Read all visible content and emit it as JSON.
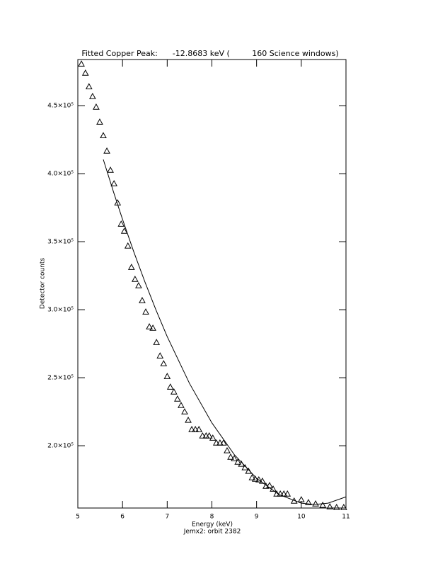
{
  "chart_data": {
    "type": "scatter",
    "title": "Fitted Copper Peak:      -12.8683 keV (         160 Science windows)",
    "x_label": "Energy (keV)",
    "subtitle": "Jemx2: orbit 2382",
    "y_label": "Detector counts",
    "xlim": [
      5,
      11
    ],
    "ylim": [
      154200,
      483900
    ],
    "xticks": [
      5,
      6,
      7,
      8,
      9,
      10,
      11
    ],
    "yticks": [
      {
        "value": 200000,
        "label": "2.0×10⁵"
      },
      {
        "value": 250000,
        "label": "2.5×10⁵"
      },
      {
        "value": 300000,
        "label": "3.0×10⁵"
      },
      {
        "value": 350000,
        "label": "3.5×10⁵"
      },
      {
        "value": 400000,
        "label": "4.0×10⁵"
      },
      {
        "value": 450000,
        "label": "4.5×10⁵"
      }
    ],
    "series": [
      {
        "type": "scatter",
        "marker": "triangle",
        "color": "#000000",
        "x": [
          5.08,
          5.17,
          5.25,
          5.33,
          5.41,
          5.49,
          5.57,
          5.65,
          5.73,
          5.81,
          5.89,
          5.97,
          6.04,
          6.12,
          6.2,
          6.28,
          6.36,
          6.44,
          6.52,
          6.6,
          6.68,
          6.76,
          6.84,
          6.92,
          7.0,
          7.07,
          7.15,
          7.23,
          7.31,
          7.39,
          7.47,
          7.55,
          7.63,
          7.71,
          7.79,
          7.87,
          7.94,
          8.02,
          8.1,
          8.18,
          8.26,
          8.34,
          8.42,
          8.5,
          8.58,
          8.66,
          8.74,
          8.82,
          8.9,
          8.97,
          9.05,
          9.13,
          9.21,
          9.29,
          9.37,
          9.45,
          9.53,
          9.61,
          9.69,
          9.84,
          10.0,
          10.16,
          10.32,
          10.48,
          10.64,
          10.79,
          10.95
        ],
        "values": [
          480700,
          474000,
          464000,
          456800,
          449000,
          438000,
          428000,
          416700,
          402600,
          392700,
          378600,
          363000,
          357800,
          346900,
          331200,
          322400,
          317700,
          306800,
          298400,
          287500,
          286500,
          276000,
          266100,
          260400,
          251000,
          243200,
          239600,
          234400,
          229700,
          225000,
          218800,
          212000,
          212000,
          212000,
          207300,
          207300,
          207300,
          205700,
          202100,
          202100,
          202100,
          196400,
          191700,
          190600,
          188000,
          186500,
          183900,
          181300,
          176600,
          175500,
          175000,
          174000,
          170300,
          170800,
          168200,
          164600,
          164600,
          164600,
          164600,
          159400,
          160400,
          158300,
          157300,
          156300,
          155200,
          154700,
          154700
        ]
      },
      {
        "type": "line",
        "color": "#000000",
        "x": [
          5.57,
          5.8,
          6,
          6.25,
          6.5,
          6.75,
          7,
          7.5,
          8,
          8.5,
          9,
          9.5,
          10,
          10.3,
          10.6,
          11
        ],
        "values": [
          410400,
          386400,
          366400,
          342700,
          320500,
          299700,
          280200,
          245700,
          216800,
          193500,
          176000,
          164100,
          157800,
          156800,
          157800,
          162400
        ]
      }
    ]
  }
}
